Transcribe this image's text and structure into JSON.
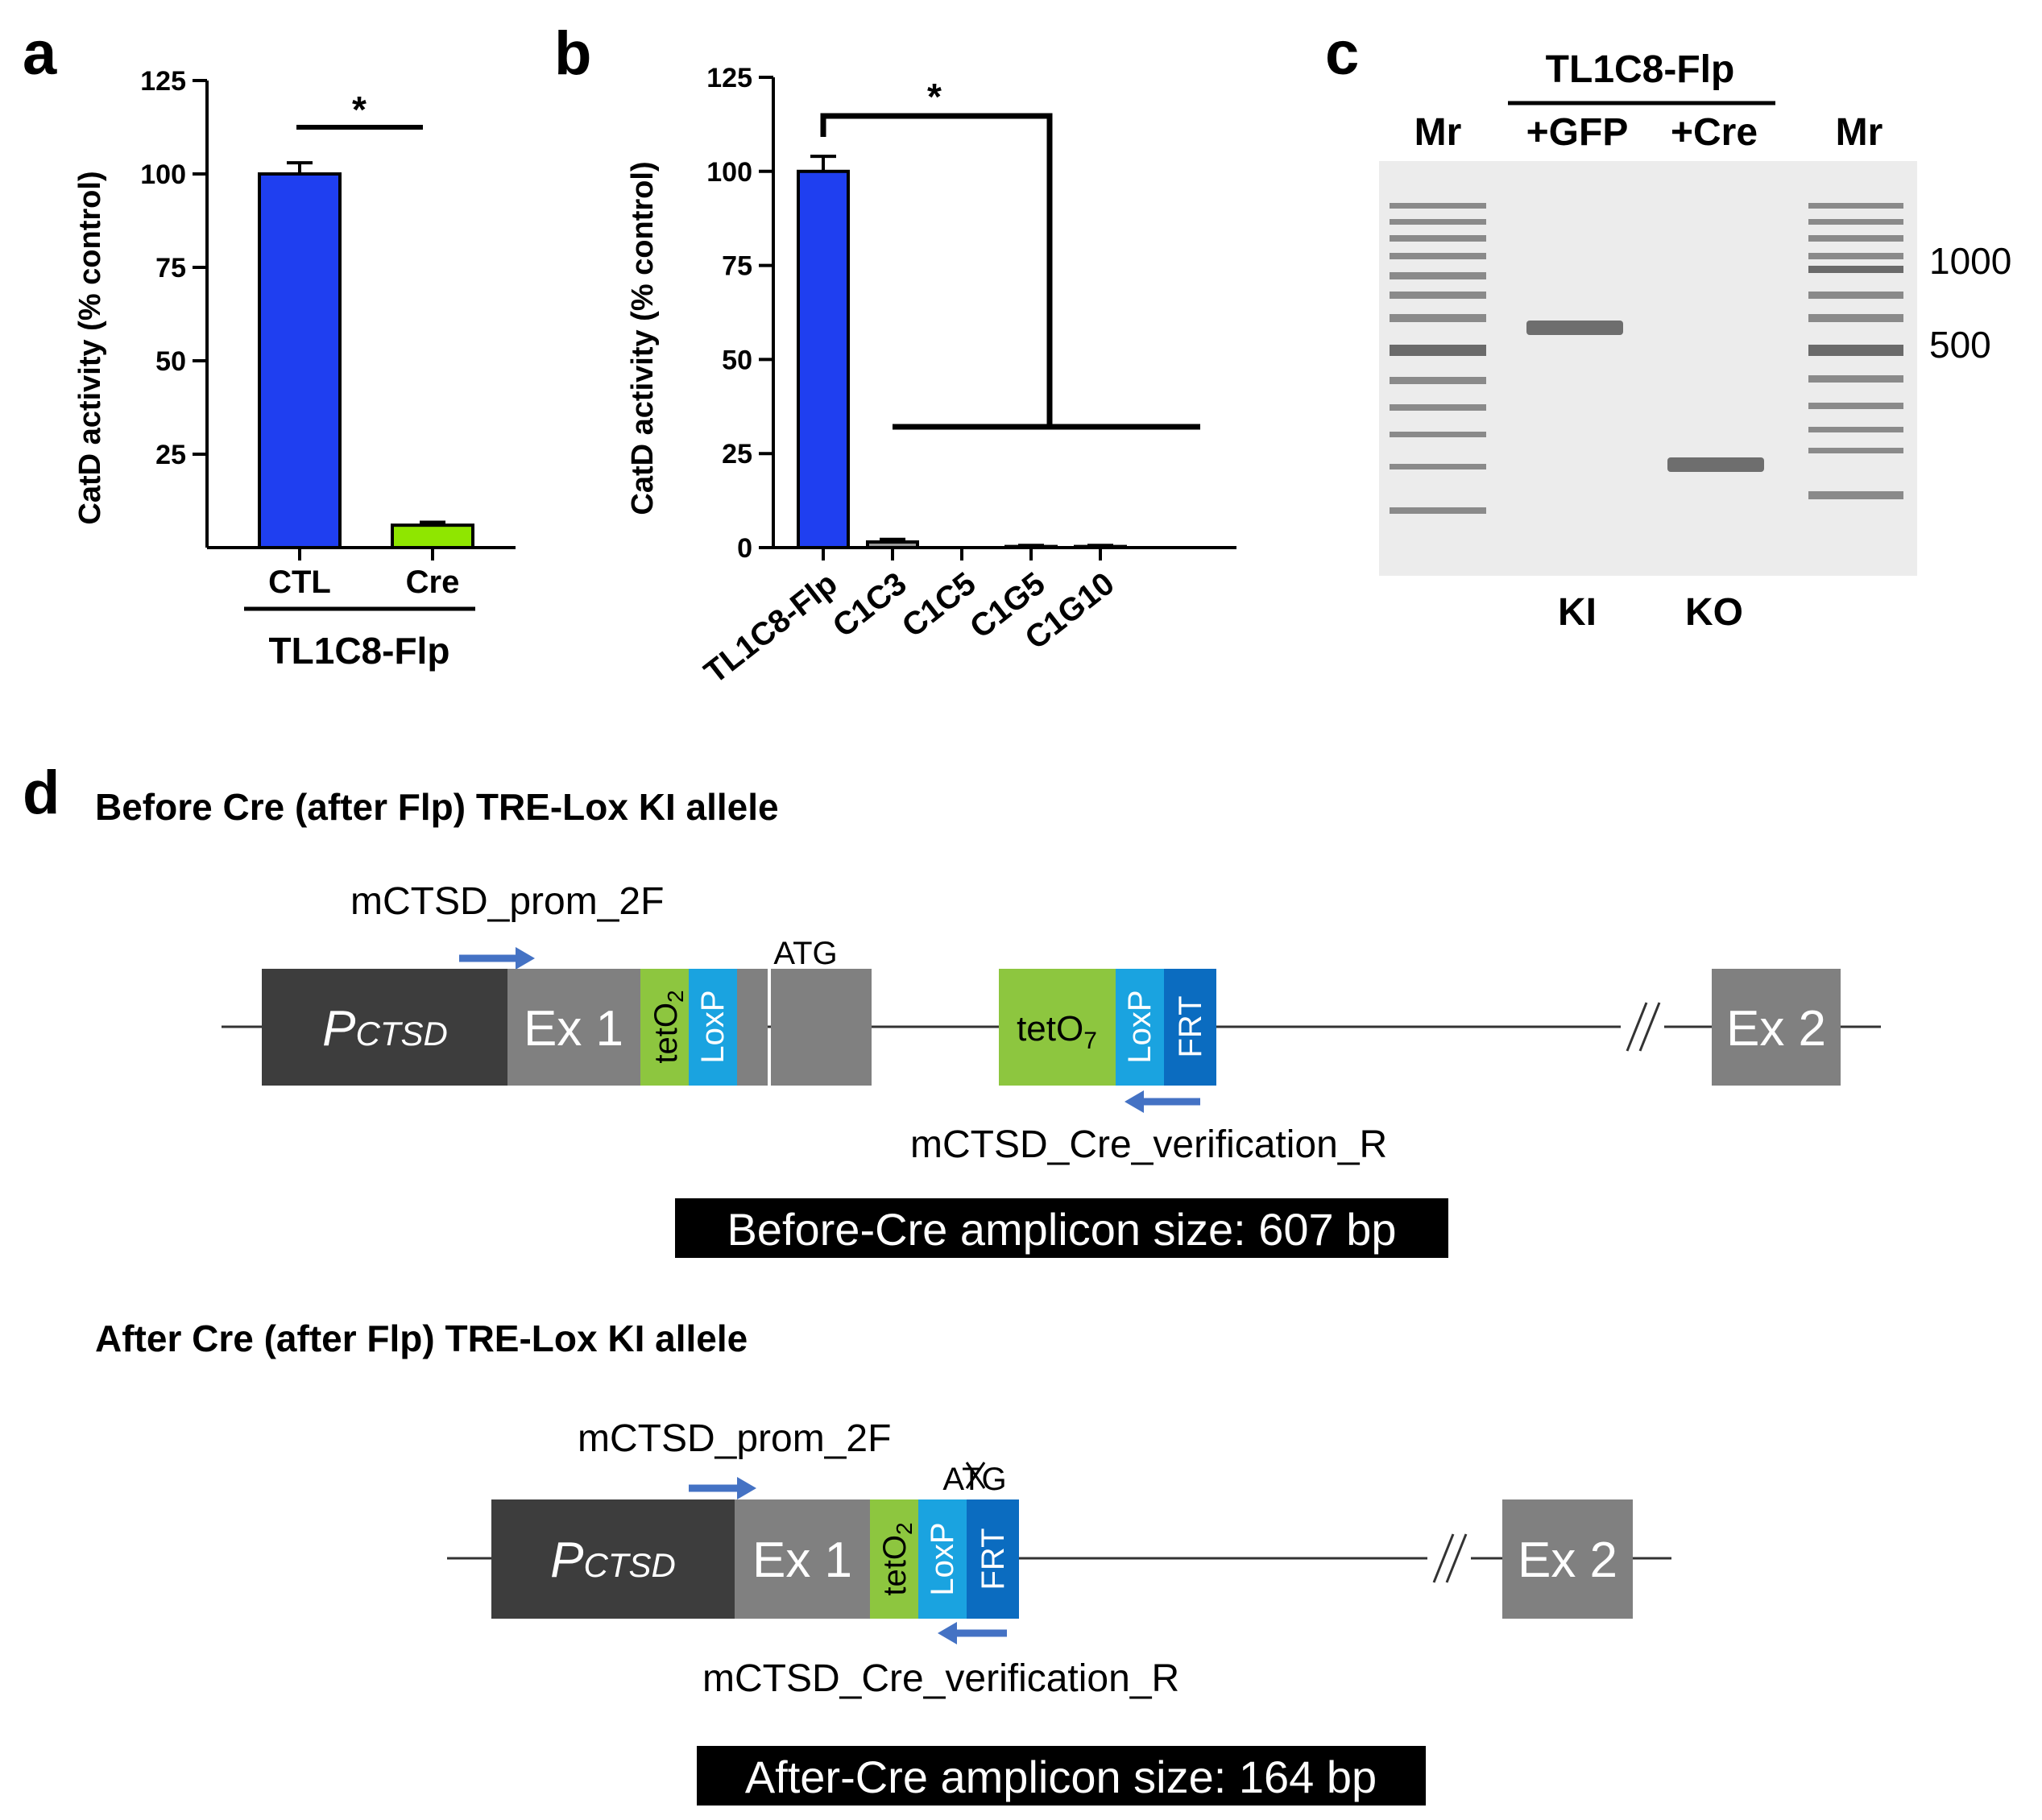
{
  "panels": {
    "a": {
      "letter": "a",
      "group_label": "TL1C8-Flp",
      "significance": "*"
    },
    "b": {
      "letter": "b",
      "significance": "*"
    },
    "c": {
      "letter": "c",
      "group_header": "TL1C8-Flp",
      "lanes": [
        "Mr",
        "+GFP",
        "+Cre",
        "Mr"
      ],
      "bottom_labels": [
        "KI",
        "KO"
      ],
      "size_markers": [
        "1000",
        "500"
      ],
      "band_colors": {
        "background": "#ececec",
        "band": "#6e6e6e"
      }
    },
    "d": {
      "letter": "d",
      "before": {
        "title": "Before Cre (after Flp) TRE-Lox KI allele",
        "forward_primer": "mCTSD_prom_2F",
        "reverse_primer": "mCTSD_Cre_verification_R",
        "promoter": "P",
        "promoter_sub": "CTSD",
        "exon1": "Ex 1",
        "teto2": "tetO",
        "teto2_sub": "2",
        "loxp": "LoxP",
        "atg": "ATG",
        "teto7": "tetO",
        "teto7_sub": "7",
        "loxp2": "LoxP",
        "frt": "FRT",
        "exon2": "Ex 2",
        "amplicon": "Before-Cre amplicon size: 607 bp"
      },
      "after": {
        "title": "After Cre (after Flp) TRE-Lox KI allele",
        "forward_primer": "mCTSD_prom_2F",
        "reverse_primer": "mCTSD_Cre_verification_R",
        "promoter": "P",
        "promoter_sub": "CTSD",
        "exon1": "Ex 1",
        "teto2": "tetO",
        "teto2_sub": "2",
        "loxp": "LoxP",
        "frt": "FRT",
        "atg": "ATG",
        "exon2": "Ex 2",
        "amplicon": "After-Cre amplicon size: 164 bp"
      },
      "colors": {
        "promoter": "#3d3d3d",
        "exon": "#808080",
        "teto": "#8dc63f",
        "loxp": "#1aa3e0",
        "frt": "#0b6cc0",
        "primer_arrow": "#4472c4"
      }
    }
  },
  "chart_data": [
    {
      "type": "bar",
      "panel": "a",
      "categories": [
        "CTL",
        "Cre"
      ],
      "values": [
        100,
        6
      ],
      "errors": [
        3,
        0.8
      ],
      "colors": [
        "#1f3ff0",
        "#8fe600"
      ],
      "ylabel": "CatD activity (% control)",
      "ylim": [
        0,
        125
      ],
      "yticks": [
        "25",
        "50",
        "75",
        "100",
        "125"
      ],
      "yticks_values": [
        25,
        50,
        75,
        100,
        125
      ]
    },
    {
      "type": "bar",
      "panel": "b",
      "categories": [
        "TL1C8-Flp",
        "C1C3",
        "C1C5",
        "C1G5",
        "C1G10"
      ],
      "values": [
        100,
        1.5,
        0,
        0.3,
        0.3
      ],
      "errors": [
        4,
        0.7,
        0,
        0.3,
        0.3
      ],
      "colors": [
        "#1f3ff0",
        "#999999",
        "#999999",
        "#999999",
        "#999999"
      ],
      "ylabel": "CatD activity (% control)",
      "ylim": [
        0,
        125
      ],
      "yticks": [
        "0",
        "25",
        "50",
        "75",
        "100",
        "125"
      ],
      "yticks_values": [
        0,
        25,
        50,
        75,
        100,
        125
      ]
    }
  ]
}
